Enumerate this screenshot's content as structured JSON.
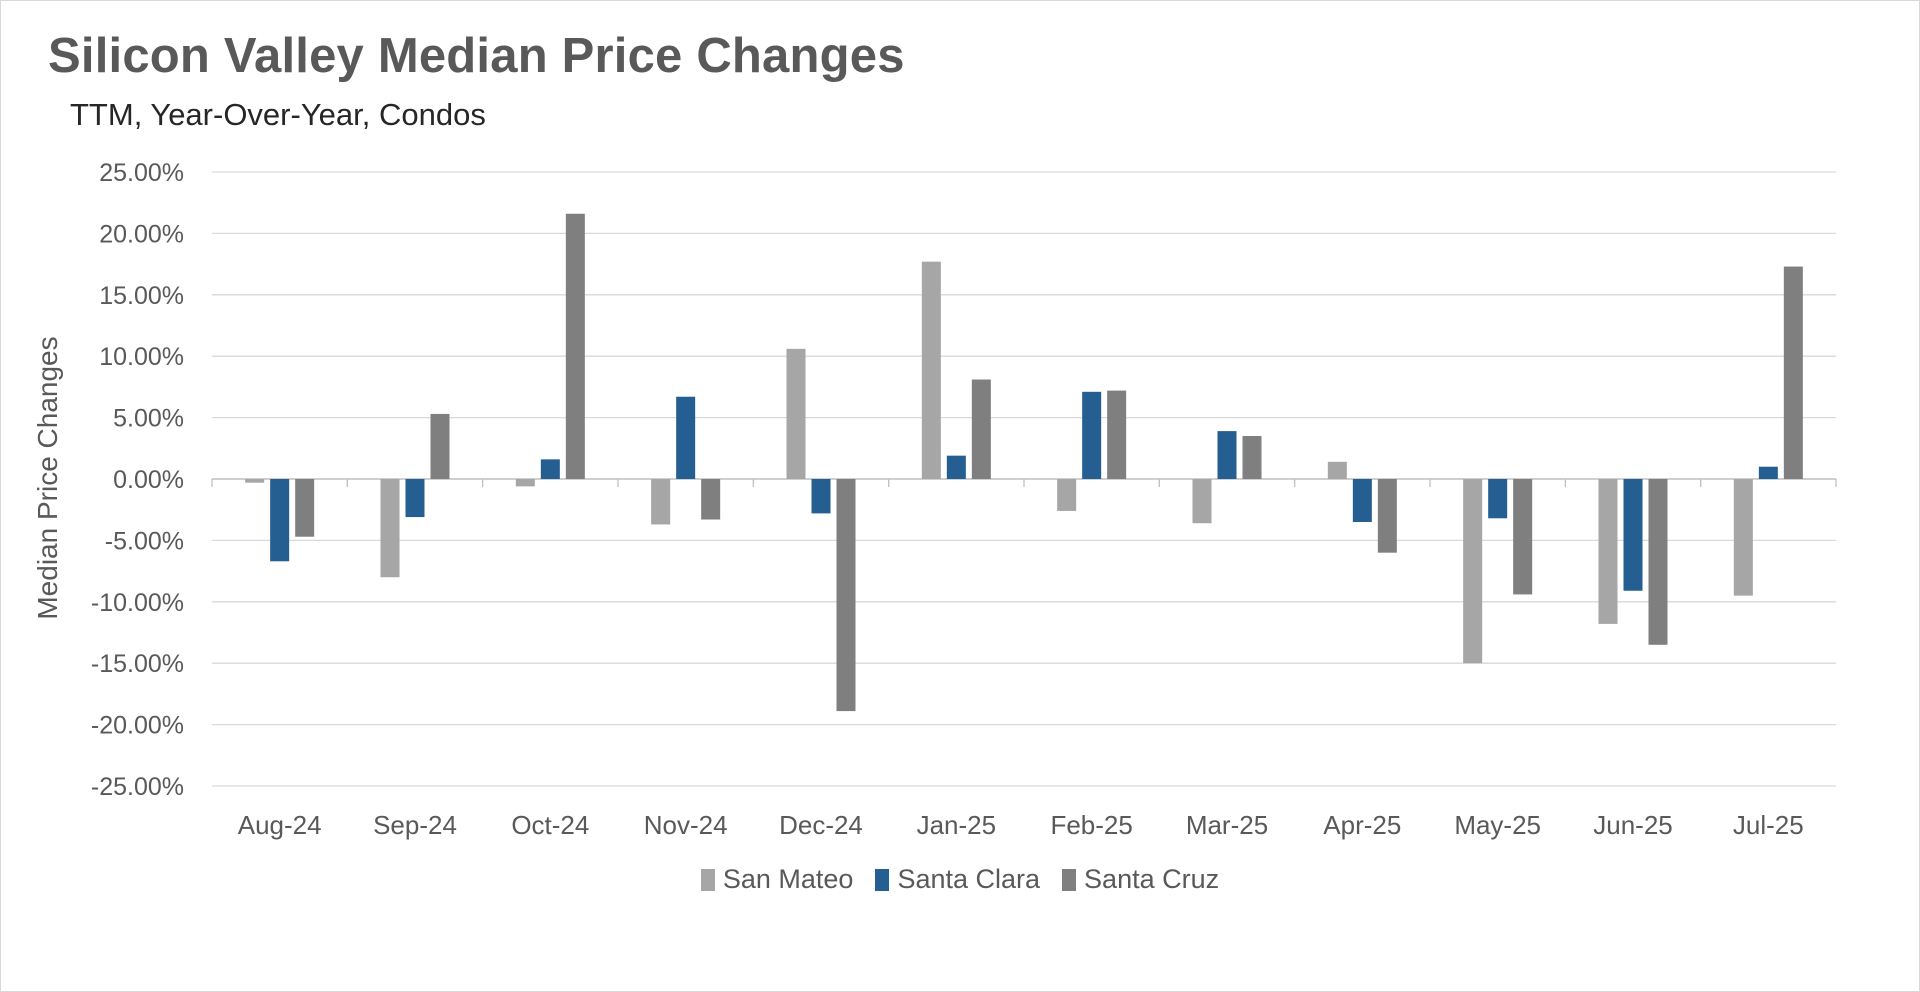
{
  "chart_data": {
    "type": "bar",
    "title": "Silicon Valley Median Price Changes",
    "subtitle": "TTM, Year-Over-Year,  Condos",
    "ylabel": "Median Price Changes",
    "xlabel": "",
    "categories": [
      "Aug-24",
      "Sep-24",
      "Oct-24",
      "Nov-24",
      "Dec-24",
      "Jan-25",
      "Feb-25",
      "Mar-25",
      "Apr-25",
      "May-25",
      "Jun-25",
      "Jul-25"
    ],
    "ylim": [
      -25,
      25
    ],
    "yticks": [
      25,
      20,
      15,
      10,
      5,
      0,
      -5,
      -10,
      -15,
      -20,
      -25
    ],
    "ytick_labels": [
      "25.00%",
      "20.00%",
      "15.00%",
      "10.00%",
      "5.00%",
      "0.00%",
      "-5.00%",
      "-10.00%",
      "-15.00%",
      "-20.00%",
      "-25.00%"
    ],
    "grid": true,
    "legend_position": "bottom",
    "series": [
      {
        "name": "San Mateo",
        "color": "#a6a6a6",
        "values": [
          -0.3,
          -8.0,
          -0.6,
          -3.7,
          10.6,
          17.7,
          -2.6,
          -3.6,
          1.4,
          -15.0,
          -11.8,
          -9.5
        ]
      },
      {
        "name": "Santa Clara",
        "color": "#255e91",
        "values": [
          -6.7,
          -3.1,
          1.6,
          6.7,
          -2.8,
          1.9,
          7.1,
          3.9,
          -3.5,
          -3.2,
          -9.1,
          1.0
        ]
      },
      {
        "name": "Santa Cruz",
        "color": "#7f7f7f",
        "values": [
          -4.7,
          5.3,
          21.6,
          -3.3,
          -18.9,
          8.1,
          7.2,
          3.5,
          -6.0,
          -9.4,
          -13.5,
          17.3
        ]
      }
    ]
  }
}
